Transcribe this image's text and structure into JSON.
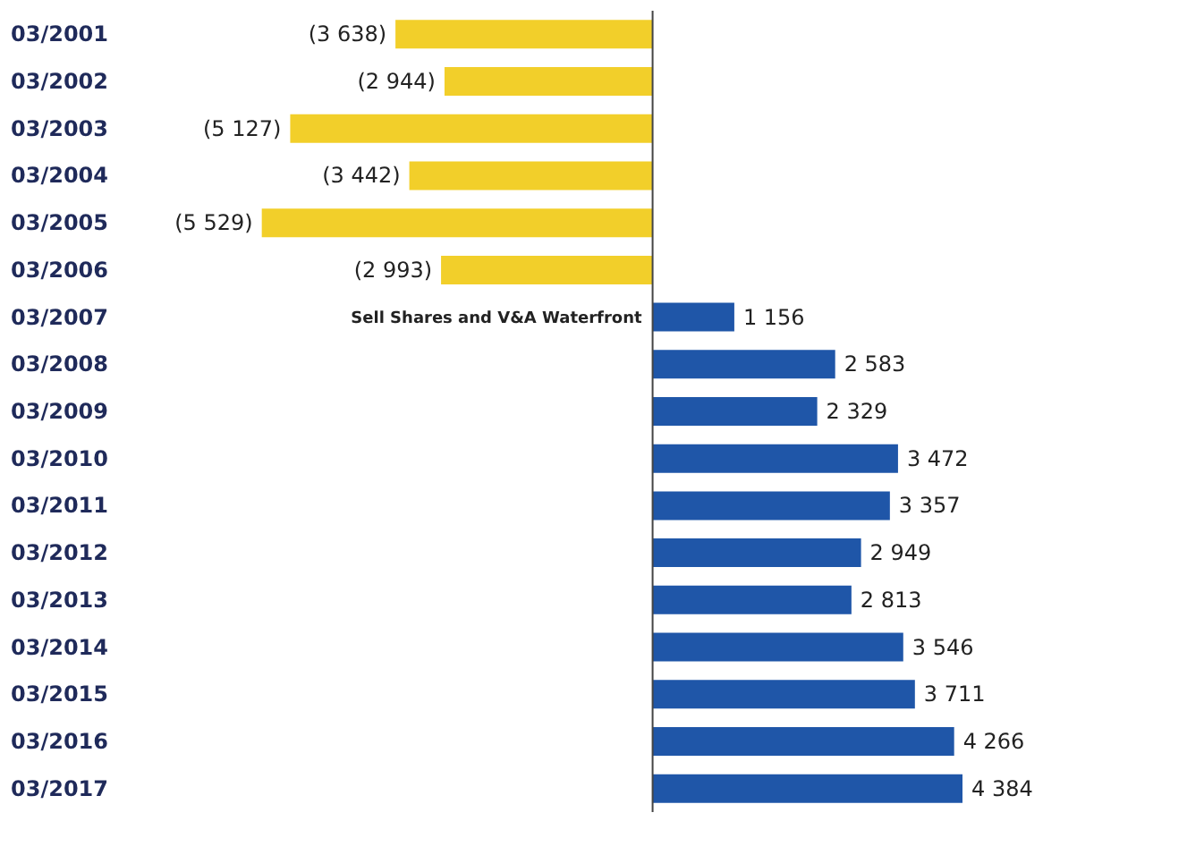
{
  "chart_data": {
    "type": "bar",
    "orientation": "horizontal",
    "categories": [
      "03/2001",
      "03/2002",
      "03/2003",
      "03/2004",
      "03/2005",
      "03/2006",
      "03/2007",
      "03/2008",
      "03/2009",
      "03/2010",
      "03/2011",
      "03/2012",
      "03/2013",
      "03/2014",
      "03/2015",
      "03/2016",
      "03/2017"
    ],
    "values": [
      -3638,
      -2944,
      -5127,
      -3442,
      -5529,
      -2993,
      1156,
      2583,
      2329,
      3472,
      3357,
      2949,
      2813,
      3546,
      3711,
      4266,
      4384
    ],
    "value_labels": [
      "(3 638)",
      "(2 944)",
      "(5 127)",
      "(3 442)",
      "(5 529)",
      "(2 993)",
      "1 156",
      "2 583",
      "2 329",
      "3 472",
      "3 357",
      "2 949",
      "2 813",
      "3 546",
      "3 711",
      "4 266",
      "4 384"
    ],
    "colors": [
      "#f2cf2a",
      "#f2cf2a",
      "#f2cf2a",
      "#f2cf2a",
      "#f2cf2a",
      "#f2cf2a",
      "#1f56a8",
      "#1f56a8",
      "#1f56a8",
      "#1f56a8",
      "#1f56a8",
      "#1f56a8",
      "#1f56a8",
      "#1f56a8",
      "#1f56a8",
      "#1f56a8",
      "#1f56a8"
    ],
    "annotations": [
      "Sell Shares and V&A Waterfront"
    ]
  }
}
